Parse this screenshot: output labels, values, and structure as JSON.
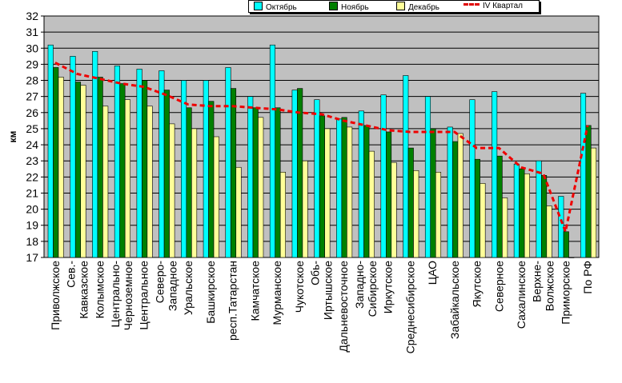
{
  "chart_data": {
    "type": "bar",
    "title": "",
    "ylabel": "км",
    "ylim": [
      17,
      32
    ],
    "yticks": [
      17,
      18,
      19,
      20,
      21,
      22,
      23,
      24,
      25,
      26,
      27,
      28,
      29,
      30,
      31,
      32
    ],
    "categories": [
      "Приволжское",
      "Сев.-Кавказское",
      "Колымское",
      "Центрально-Черноземное",
      "Центральное",
      "Северо-Западное",
      "Уральское",
      "Башкирское",
      "респ.Татарстан",
      "Камчатское",
      "Мурманское",
      "Чукотское",
      "Обь-Иртышское",
      "Дальневосточное",
      "Западно-Сибирское",
      "Иркутское",
      "Среднесибирское",
      "ЦАО",
      "Забайкальское",
      "Якутское",
      "Северное",
      "Сахалинское",
      "Верхне-Волжское",
      "Приморское",
      "По РФ"
    ],
    "category_lines": [
      [
        "Приволжское"
      ],
      [
        "Сев.-",
        "Кавказское"
      ],
      [
        "Колымское"
      ],
      [
        "Центрально-",
        "Черноземное"
      ],
      [
        "Центральное"
      ],
      [
        "Северо-",
        "Западное"
      ],
      [
        "Уральское"
      ],
      [
        "Башкирское"
      ],
      [
        "респ.Татарстан"
      ],
      [
        "Камчатское"
      ],
      [
        "Мурманское"
      ],
      [
        "Чукотское"
      ],
      [
        "Обь-",
        "Иртышское"
      ],
      [
        "Дальневосточное"
      ],
      [
        "Западно-",
        "Сибирское"
      ],
      [
        "Иркутское"
      ],
      [
        "Среднесибирское"
      ],
      [
        "ЦАО"
      ],
      [
        "Забайкальское"
      ],
      [
        "Якутское"
      ],
      [
        "Северное"
      ],
      [
        "Сахалинское"
      ],
      [
        "Верхне-",
        "Волжское"
      ],
      [
        "Приморское"
      ],
      [
        "По РФ"
      ]
    ],
    "series": [
      {
        "name": "Октябрь",
        "kind": "bar",
        "color": "#00ffff",
        "values": [
          30.2,
          29.5,
          29.8,
          28.9,
          28.7,
          28.6,
          28.0,
          28.0,
          28.8,
          27.0,
          30.2,
          27.4,
          26.8,
          25.6,
          26.1,
          27.1,
          28.3,
          27.0,
          25.1,
          26.8,
          27.3,
          22.8,
          23.0,
          20.8,
          27.2
        ]
      },
      {
        "name": "Ноябрь",
        "kind": "bar",
        "color": "#008000",
        "values": [
          28.8,
          27.9,
          28.2,
          27.8,
          28.0,
          27.4,
          26.3,
          26.7,
          27.5,
          26.3,
          26.3,
          27.5,
          25.8,
          25.7,
          25.2,
          24.8,
          23.8,
          25.0,
          24.2,
          23.1,
          23.3,
          22.5,
          22.1,
          18.6,
          25.2
        ]
      },
      {
        "name": "Декабрь",
        "kind": "bar",
        "color": "#ffff99",
        "values": [
          28.2,
          27.7,
          26.4,
          26.8,
          26.4,
          25.3,
          25.0,
          24.5,
          22.6,
          25.7,
          22.3,
          23.0,
          25.0,
          25.1,
          23.6,
          22.9,
          22.4,
          22.3,
          24.7,
          21.6,
          20.7,
          22.2,
          20.2,
          16.7,
          23.8
        ]
      },
      {
        "name": "IV Квартал",
        "kind": "line",
        "color": "#ee0000",
        "values": [
          29.1,
          28.4,
          28.1,
          27.8,
          27.6,
          27.1,
          26.5,
          26.4,
          26.4,
          26.3,
          26.2,
          26.0,
          25.9,
          25.5,
          25.2,
          24.9,
          24.8,
          24.8,
          24.8,
          23.8,
          23.8,
          22.6,
          22.2,
          18.6,
          25.2
        ]
      }
    ],
    "grid": true,
    "legend": "top"
  }
}
